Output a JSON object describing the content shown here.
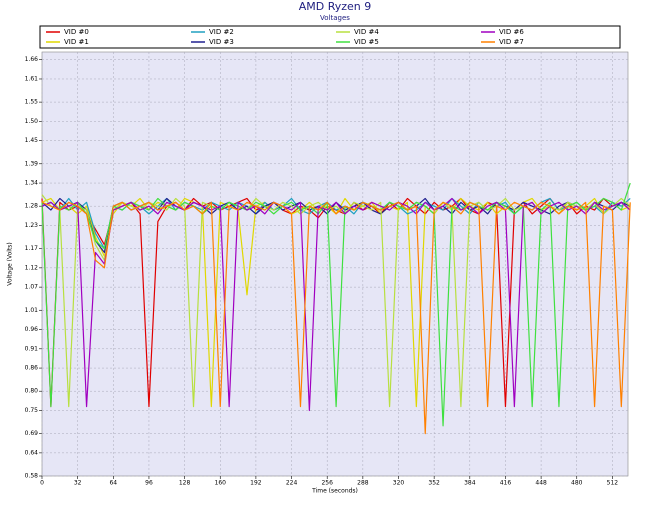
{
  "chart_data": {
    "type": "line",
    "title": "AMD Ryzen 9",
    "subtitle": "Voltages",
    "x_label": "Time (seconds)",
    "y_label": "Voltage (Volts)",
    "grid": true,
    "xlim": [
      0,
      526
    ],
    "xticks": [
      0,
      32,
      64,
      96,
      128,
      160,
      192,
      224,
      256,
      288,
      320,
      352,
      384,
      416,
      448,
      480,
      512
    ],
    "ylim": [
      0.58,
      1.68
    ],
    "yticks": [
      0.58,
      0.64,
      0.69,
      0.75,
      {
        "value": 0.8,
        "label": "0.80"
      },
      0.86,
      0.91,
      0.96,
      1.01,
      1.07,
      1.12,
      1.17,
      1.23,
      1.28,
      1.34,
      1.39,
      1.45,
      {
        "value": 1.5,
        "label": "1.50"
      },
      1.55,
      1.61,
      1.66
    ],
    "x": [
      0,
      8,
      16,
      24,
      32,
      40,
      48,
      56,
      64,
      72,
      80,
      88,
      96,
      104,
      112,
      120,
      128,
      136,
      144,
      152,
      160,
      168,
      176,
      184,
      192,
      200,
      208,
      216,
      224,
      232,
      240,
      248,
      256,
      264,
      272,
      280,
      288,
      296,
      304,
      312,
      320,
      328,
      336,
      344,
      352,
      360,
      368,
      376,
      384,
      392,
      400,
      408,
      416,
      424,
      432,
      440,
      448,
      456,
      464,
      472,
      480,
      488,
      496,
      504,
      512,
      520,
      528
    ],
    "series": [
      {
        "name": "VID #0",
        "color": "#e00000",
        "values": [
          1.3,
          0.76,
          1.29,
          1.27,
          1.28,
          1.26,
          1.22,
          1.18,
          1.27,
          1.28,
          1.29,
          1.26,
          0.76,
          1.24,
          1.28,
          1.29,
          1.27,
          1.3,
          1.28,
          1.29,
          1.27,
          1.28,
          1.29,
          1.3,
          1.27,
          1.28,
          1.29,
          1.27,
          1.26,
          1.28,
          1.27,
          1.25,
          1.28,
          1.27,
          1.26,
          1.29,
          1.27,
          1.28,
          1.26,
          1.29,
          1.27,
          1.3,
          1.28,
          1.26,
          1.29,
          1.27,
          1.28,
          1.3,
          1.27,
          1.26,
          1.29,
          1.28,
          0.76,
          1.27,
          1.29,
          1.26,
          1.28,
          1.3,
          1.27,
          1.29,
          1.26,
          1.28,
          1.27,
          1.3,
          1.28,
          1.29,
          1.27
        ]
      },
      {
        "name": "VID #1",
        "color": "#e0d800",
        "values": [
          1.29,
          1.3,
          1.27,
          1.28,
          1.26,
          1.28,
          1.2,
          1.15,
          1.26,
          1.29,
          1.28,
          1.3,
          1.27,
          1.29,
          1.28,
          1.27,
          1.3,
          1.29,
          1.28,
          0.76,
          1.29,
          1.28,
          1.27,
          1.05,
          1.28,
          1.29,
          1.27,
          1.28,
          1.26,
          1.27,
          1.29,
          1.27,
          1.28,
          1.26,
          1.3,
          1.27,
          1.28,
          1.29,
          1.26,
          1.28,
          1.27,
          1.29,
          0.76,
          1.28,
          1.26,
          1.29,
          1.27,
          1.3,
          1.28,
          1.27,
          1.29,
          1.26,
          1.28,
          1.27,
          1.29,
          1.3,
          1.27,
          1.28,
          1.26,
          1.29,
          1.27,
          1.28,
          1.3,
          1.26,
          1.29,
          1.27,
          1.28
        ]
      },
      {
        "name": "VID #2",
        "color": "#20a0c0",
        "values": [
          1.28,
          1.29,
          1.27,
          1.3,
          1.27,
          1.29,
          1.21,
          1.17,
          1.28,
          1.27,
          1.29,
          1.28,
          1.26,
          1.28,
          1.3,
          1.27,
          1.29,
          1.28,
          1.27,
          1.29,
          1.28,
          1.27,
          1.29,
          1.28,
          1.26,
          1.29,
          1.27,
          1.28,
          1.3,
          1.27,
          1.26,
          1.28,
          1.29,
          1.27,
          1.28,
          1.26,
          1.29,
          1.28,
          1.27,
          1.29,
          1.28,
          1.26,
          1.27,
          1.29,
          1.28,
          1.27,
          1.3,
          1.28,
          1.26,
          1.29,
          1.27,
          1.28,
          1.29,
          1.26,
          1.28,
          1.27,
          1.29,
          1.3,
          1.27,
          1.28,
          1.29,
          1.27,
          1.28,
          1.26,
          1.29,
          1.28,
          1.3
        ]
      },
      {
        "name": "VID #3",
        "color": "#202090",
        "values": [
          1.29,
          1.27,
          1.3,
          1.28,
          1.29,
          1.27,
          1.19,
          1.16,
          1.28,
          1.29,
          1.27,
          1.28,
          1.29,
          1.27,
          1.3,
          1.28,
          1.27,
          1.29,
          1.28,
          1.26,
          1.28,
          1.29,
          1.27,
          1.28,
          1.26,
          1.28,
          1.29,
          1.27,
          1.28,
          1.29,
          1.27,
          1.28,
          1.26,
          1.29,
          1.27,
          1.28,
          1.29,
          1.27,
          1.26,
          1.28,
          1.29,
          1.27,
          1.28,
          1.3,
          1.27,
          1.28,
          1.26,
          1.29,
          1.27,
          1.28,
          1.26,
          1.29,
          1.28,
          1.27,
          1.29,
          1.28,
          1.27,
          1.26,
          1.28,
          1.29,
          1.28,
          1.27,
          1.29,
          1.28,
          1.27,
          1.29,
          1.28
        ]
      },
      {
        "name": "VID #4",
        "color": "#b8e040",
        "values": [
          1.31,
          1.28,
          1.27,
          0.76,
          1.28,
          1.27,
          1.18,
          1.14,
          1.27,
          1.29,
          1.28,
          1.27,
          1.29,
          1.28,
          1.27,
          1.3,
          1.28,
          0.76,
          1.29,
          1.28,
          1.27,
          1.29,
          1.28,
          1.27,
          1.3,
          1.28,
          1.27,
          1.29,
          1.28,
          1.26,
          1.28,
          1.29,
          1.27,
          1.28,
          1.26,
          1.29,
          1.28,
          1.27,
          1.29,
          0.76,
          1.28,
          1.27,
          1.29,
          1.28,
          1.26,
          1.29,
          1.27,
          0.76,
          1.28,
          1.29,
          1.27,
          1.28,
          1.3,
          1.27,
          1.28,
          1.29,
          1.26,
          1.28,
          1.27,
          1.29,
          1.28,
          1.27,
          1.29,
          1.26,
          1.28,
          1.3,
          1.28
        ]
      },
      {
        "name": "VID #5",
        "color": "#40e040",
        "values": [
          1.29,
          0.76,
          1.28,
          1.27,
          1.29,
          1.26,
          1.19,
          1.17,
          1.28,
          1.27,
          1.29,
          1.28,
          1.27,
          1.3,
          1.28,
          1.27,
          1.29,
          1.28,
          1.26,
          1.28,
          1.27,
          1.29,
          1.28,
          1.27,
          1.29,
          1.28,
          1.26,
          1.28,
          1.29,
          1.27,
          1.28,
          1.26,
          1.29,
          0.76,
          1.28,
          1.27,
          1.29,
          1.28,
          1.27,
          1.29,
          1.28,
          1.27,
          1.29,
          1.28,
          1.26,
          0.71,
          1.28,
          1.27,
          1.29,
          1.28,
          1.27,
          1.29,
          1.28,
          1.26,
          1.28,
          0.76,
          1.27,
          1.29,
          0.76,
          1.28,
          1.29,
          1.27,
          1.28,
          1.3,
          1.29,
          1.27,
          1.34
        ]
      },
      {
        "name": "VID #6",
        "color": "#a000c0",
        "values": [
          1.28,
          1.29,
          1.27,
          1.28,
          1.29,
          0.76,
          1.16,
          1.13,
          1.27,
          1.28,
          1.29,
          1.27,
          1.28,
          1.26,
          1.29,
          1.28,
          1.27,
          1.29,
          1.28,
          1.27,
          1.28,
          0.76,
          1.29,
          1.27,
          1.28,
          1.26,
          1.29,
          1.28,
          1.27,
          1.29,
          0.75,
          1.28,
          1.27,
          1.29,
          1.26,
          1.28,
          1.27,
          1.29,
          1.28,
          1.27,
          1.29,
          1.28,
          1.26,
          1.29,
          1.27,
          1.28,
          1.3,
          1.27,
          1.28,
          1.26,
          1.28,
          1.29,
          1.27,
          0.76,
          1.28,
          1.29,
          1.26,
          1.28,
          1.29,
          1.27,
          1.28,
          1.26,
          1.29,
          1.27,
          1.28,
          1.29,
          1.27
        ]
      },
      {
        "name": "VID #7",
        "color": "#ff8000",
        "values": [
          1.29,
          1.28,
          1.27,
          1.29,
          1.28,
          1.26,
          1.14,
          1.12,
          1.28,
          1.29,
          1.27,
          1.28,
          1.29,
          1.27,
          1.28,
          1.29,
          1.27,
          1.28,
          1.26,
          1.29,
          0.76,
          1.28,
          1.27,
          1.29,
          1.28,
          1.27,
          1.29,
          1.28,
          1.26,
          0.76,
          1.28,
          1.27,
          1.29,
          1.26,
          1.28,
          1.27,
          1.29,
          1.28,
          1.27,
          1.28,
          1.29,
          1.27,
          1.28,
          0.69,
          1.27,
          1.29,
          1.28,
          1.26,
          1.29,
          1.28,
          0.76,
          1.28,
          1.27,
          1.29,
          1.28,
          1.27,
          1.29,
          1.28,
          1.26,
          1.28,
          1.27,
          1.29,
          0.76,
          1.28,
          1.27,
          0.76,
          1.29
        ]
      }
    ]
  }
}
